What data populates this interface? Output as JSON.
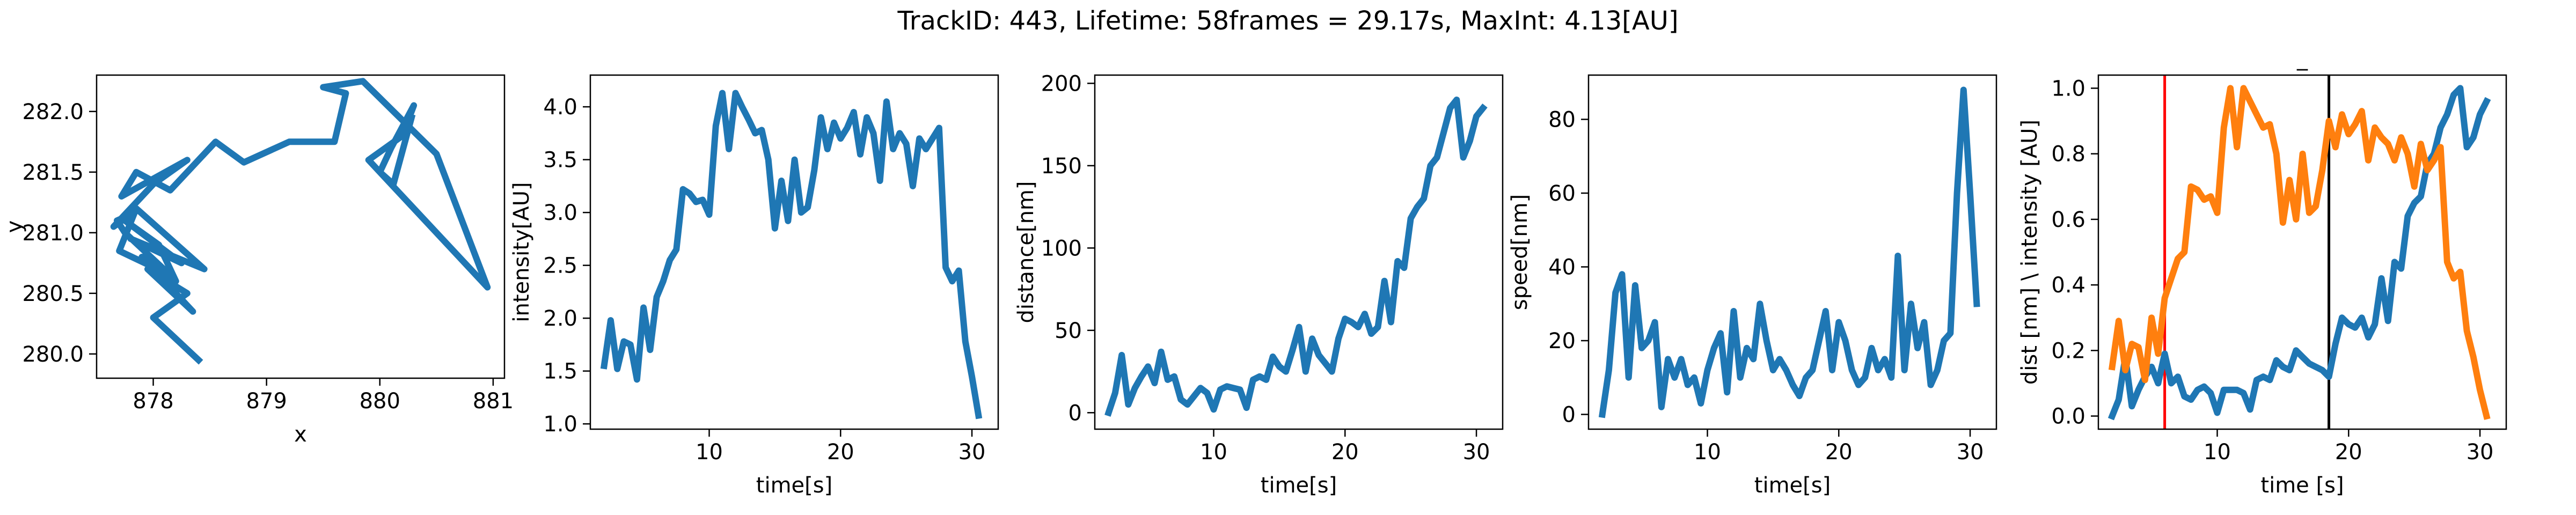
{
  "suptitle": "TrackID: 443, Lifetime: 58frames = 29.17s, MaxInt: 4.13[AU]",
  "colors": {
    "blue": "#1f77b4",
    "orange": "#ff7f0e",
    "red": "#ff0000",
    "black": "#000000"
  },
  "chart_data": [
    {
      "type": "line",
      "xlabel": "x",
      "ylabel": "y",
      "xlim": [
        877.5,
        881.1
      ],
      "ylim": [
        279.8,
        282.3
      ],
      "xticks": [
        878,
        879,
        880,
        881
      ],
      "yticks": [
        280.0,
        280.5,
        281.0,
        281.5,
        282.0
      ],
      "xtick_labels": [
        "878",
        "879",
        "880",
        "881"
      ],
      "ytick_labels": [
        "280.0",
        "280.5",
        "281.0",
        "281.5",
        "282.0"
      ],
      "series": [
        {
          "color": "#1f77b4",
          "x": [
            878.4,
            878.0,
            878.3,
            877.95,
            878.35,
            877.9,
            878.2,
            878.05,
            877.75,
            878.25,
            877.8,
            878.45,
            877.85,
            877.7,
            878.15,
            877.75,
            877.68,
            877.8,
            877.65,
            878.0,
            878.3,
            877.72,
            877.85,
            878.15,
            878.55,
            878.8,
            879.2,
            879.6,
            879.7,
            879.5,
            879.85,
            880.5,
            880.95,
            879.9,
            880.2,
            880.3,
            880.1,
            880.0,
            880.12,
            880.28
          ],
          "y": [
            279.95,
            280.3,
            280.5,
            280.7,
            280.35,
            280.8,
            280.6,
            280.9,
            281.1,
            280.75,
            280.95,
            280.7,
            281.2,
            280.85,
            280.65,
            281.0,
            281.1,
            281.15,
            281.05,
            281.4,
            281.6,
            281.3,
            281.5,
            281.35,
            281.75,
            281.58,
            281.75,
            281.75,
            282.15,
            282.2,
            282.25,
            281.65,
            280.55,
            281.6,
            281.8,
            282.05,
            281.7,
            281.5,
            281.4,
            281.95
          ]
        }
      ]
    },
    {
      "type": "line",
      "xlabel": "time[s]",
      "ylabel": "intensity[AU]",
      "xlim": [
        0.95,
        32.0
      ],
      "ylim": [
        0.95,
        4.3
      ],
      "xticks": [
        10,
        20,
        30
      ],
      "yticks": [
        1.0,
        1.5,
        2.0,
        2.5,
        3.0,
        3.5,
        4.0
      ],
      "xtick_labels": [
        "10",
        "20",
        "30"
      ],
      "ytick_labels": [
        "1.0",
        "1.5",
        "2.0",
        "2.5",
        "3.0",
        "3.5",
        "4.0"
      ],
      "series": [
        {
          "color": "#1f77b4",
          "x": [
            2.0,
            2.5,
            3.0,
            3.5,
            4.0,
            4.5,
            5.0,
            5.5,
            6.0,
            6.5,
            7.0,
            7.5,
            8.0,
            8.5,
            9.0,
            9.5,
            10.0,
            10.5,
            11.0,
            11.5,
            12.0,
            12.5,
            13.0,
            13.5,
            14.0,
            14.5,
            15.0,
            15.5,
            16.0,
            16.5,
            17.0,
            17.5,
            18.0,
            18.5,
            19.0,
            19.5,
            20.0,
            20.5,
            21.0,
            21.5,
            22.0,
            22.5,
            23.0,
            23.5,
            24.0,
            24.5,
            25.0,
            25.5,
            26.0,
            26.5,
            27.0,
            27.5,
            28.0,
            28.5,
            29.0,
            29.5,
            30.0,
            30.5
          ],
          "y": [
            1.55,
            1.98,
            1.52,
            1.78,
            1.75,
            1.42,
            2.1,
            1.7,
            2.2,
            2.35,
            2.55,
            2.65,
            3.22,
            3.18,
            3.1,
            3.12,
            2.98,
            3.82,
            4.13,
            3.6,
            4.13,
            4.0,
            3.88,
            3.75,
            3.78,
            3.5,
            2.85,
            3.3,
            2.92,
            3.5,
            3.0,
            3.05,
            3.4,
            3.9,
            3.6,
            3.85,
            3.7,
            3.8,
            3.95,
            3.55,
            3.9,
            3.75,
            3.3,
            4.05,
            3.6,
            3.75,
            3.65,
            3.25,
            3.7,
            3.6,
            3.7,
            3.8,
            2.48,
            2.35,
            2.45,
            1.78,
            1.45,
            1.08
          ]
        }
      ]
    },
    {
      "type": "line",
      "xlabel": "time[s]",
      "ylabel": "distance[nm]",
      "xlim": [
        0.95,
        32.0
      ],
      "ylim": [
        -10,
        205
      ],
      "xticks": [
        10,
        20,
        30
      ],
      "yticks": [
        0,
        50,
        100,
        150,
        200
      ],
      "xtick_labels": [
        "10",
        "20",
        "30"
      ],
      "ytick_labels": [
        "0",
        "50",
        "100",
        "150",
        "200"
      ],
      "series": [
        {
          "color": "#1f77b4",
          "x": [
            2.0,
            2.5,
            3.0,
            3.5,
            4.0,
            4.5,
            5.0,
            5.5,
            6.0,
            6.5,
            7.0,
            7.5,
            8.0,
            8.5,
            9.0,
            9.5,
            10.0,
            10.5,
            11.0,
            11.5,
            12.0,
            12.5,
            13.0,
            13.5,
            14.0,
            14.5,
            15.0,
            15.5,
            16.0,
            16.5,
            17.0,
            17.5,
            18.0,
            18.5,
            19.0,
            19.5,
            20.0,
            20.5,
            21.0,
            21.5,
            22.0,
            22.5,
            23.0,
            23.5,
            24.0,
            24.5,
            25.0,
            25.5,
            26.0,
            26.5,
            27.0,
            27.5,
            28.0,
            28.5,
            29.0,
            29.5,
            30.0,
            30.5
          ],
          "y": [
            0,
            12,
            35,
            5,
            15,
            22,
            28,
            18,
            37,
            20,
            22,
            8,
            5,
            10,
            15,
            12,
            2,
            14,
            16,
            15,
            14,
            3,
            20,
            22,
            20,
            34,
            28,
            25,
            38,
            52,
            25,
            45,
            35,
            30,
            25,
            45,
            57,
            55,
            52,
            60,
            48,
            52,
            80,
            55,
            92,
            88,
            118,
            125,
            130,
            150,
            155,
            170,
            185,
            190,
            155,
            165,
            180,
            185
          ]
        }
      ]
    },
    {
      "type": "line",
      "xlabel": "time[s]",
      "ylabel": "speed[nm]",
      "xlim": [
        0.95,
        32.0
      ],
      "ylim": [
        -4,
        92
      ],
      "xticks": [
        10,
        20,
        30
      ],
      "yticks": [
        0,
        20,
        40,
        60,
        80
      ],
      "xtick_labels": [
        "10",
        "20",
        "30"
      ],
      "ytick_labels": [
        "0",
        "20",
        "40",
        "60",
        "80"
      ],
      "series": [
        {
          "color": "#1f77b4",
          "x": [
            2.0,
            2.5,
            3.0,
            3.5,
            4.0,
            4.5,
            5.0,
            5.5,
            6.0,
            6.5,
            7.0,
            7.5,
            8.0,
            8.5,
            9.0,
            9.5,
            10.0,
            10.5,
            11.0,
            11.5,
            12.0,
            12.5,
            13.0,
            13.5,
            14.0,
            14.5,
            15.0,
            15.5,
            16.0,
            16.5,
            17.0,
            17.5,
            18.0,
            18.5,
            19.0,
            19.5,
            20.0,
            20.5,
            21.0,
            21.5,
            22.0,
            22.5,
            23.0,
            23.5,
            24.0,
            24.5,
            25.0,
            25.5,
            26.0,
            26.5,
            27.0,
            27.5,
            28.0,
            28.5,
            29.0,
            29.5,
            30.0,
            30.5
          ],
          "y": [
            0,
            12,
            33,
            38,
            10,
            35,
            18,
            20,
            25,
            2,
            15,
            10,
            15,
            8,
            10,
            3,
            12,
            18,
            22,
            6,
            28,
            10,
            18,
            15,
            30,
            20,
            12,
            15,
            12,
            8,
            5,
            10,
            12,
            20,
            28,
            12,
            25,
            20,
            12,
            8,
            10,
            18,
            12,
            15,
            10,
            43,
            12,
            30,
            18,
            25,
            8,
            12,
            20,
            22,
            60,
            88,
            60,
            30
          ]
        }
      ]
    },
    {
      "type": "line",
      "xlabel": "time [s]",
      "ylabel": "dist [nm] \\ intensity [AU]",
      "title": "_",
      "xlim": [
        0.95,
        32.0
      ],
      "ylim": [
        -0.04,
        1.04
      ],
      "xticks": [
        10,
        20,
        30
      ],
      "yticks": [
        0.0,
        0.2,
        0.4,
        0.6,
        0.8,
        1.0
      ],
      "xtick_labels": [
        "10",
        "20",
        "30"
      ],
      "ytick_labels": [
        "0.0",
        "0.2",
        "0.4",
        "0.6",
        "0.8",
        "1.0"
      ],
      "vlines": [
        {
          "x": 6.0,
          "color": "#ff0000"
        },
        {
          "x": 18.5,
          "color": "#000000"
        }
      ],
      "series": [
        {
          "color": "#1f77b4",
          "x": [
            2.0,
            2.5,
            3.0,
            3.5,
            4.0,
            4.5,
            5.0,
            5.5,
            6.0,
            6.5,
            7.0,
            7.5,
            8.0,
            8.5,
            9.0,
            9.5,
            10.0,
            10.5,
            11.0,
            11.5,
            12.0,
            12.5,
            13.0,
            13.5,
            14.0,
            14.5,
            15.0,
            15.5,
            16.0,
            16.5,
            17.0,
            17.5,
            18.0,
            18.5,
            19.0,
            19.5,
            20.0,
            20.5,
            21.0,
            21.5,
            22.0,
            22.5,
            23.0,
            23.5,
            24.0,
            24.5,
            25.0,
            25.5,
            26.0,
            26.5,
            27.0,
            27.5,
            28.0,
            28.5,
            29.0,
            29.5,
            30.0,
            30.5
          ],
          "y": [
            0.0,
            0.05,
            0.18,
            0.03,
            0.08,
            0.12,
            0.15,
            0.1,
            0.19,
            0.1,
            0.12,
            0.06,
            0.05,
            0.08,
            0.09,
            0.07,
            0.01,
            0.08,
            0.08,
            0.08,
            0.07,
            0.02,
            0.11,
            0.12,
            0.11,
            0.17,
            0.15,
            0.14,
            0.2,
            0.18,
            0.16,
            0.15,
            0.14,
            0.12,
            0.22,
            0.3,
            0.28,
            0.27,
            0.3,
            0.24,
            0.28,
            0.42,
            0.29,
            0.47,
            0.45,
            0.61,
            0.65,
            0.67,
            0.77,
            0.8,
            0.88,
            0.92,
            0.98,
            1.0,
            0.82,
            0.85,
            0.92,
            0.96
          ]
        },
        {
          "color": "#ff7f0e",
          "x": [
            2.0,
            2.5,
            3.0,
            3.5,
            4.0,
            4.5,
            5.0,
            5.5,
            6.0,
            6.5,
            7.0,
            7.5,
            8.0,
            8.5,
            9.0,
            9.5,
            10.0,
            10.5,
            11.0,
            11.5,
            12.0,
            12.5,
            13.0,
            13.5,
            14.0,
            14.5,
            15.0,
            15.5,
            16.0,
            16.5,
            17.0,
            17.5,
            18.0,
            18.5,
            19.0,
            19.5,
            20.0,
            20.5,
            21.0,
            21.5,
            22.0,
            22.5,
            23.0,
            23.5,
            24.0,
            24.5,
            25.0,
            25.5,
            26.0,
            26.5,
            27.0,
            27.5,
            28.0,
            28.5,
            29.0,
            29.5,
            30.0,
            30.5
          ],
          "y": [
            0.15,
            0.29,
            0.14,
            0.22,
            0.21,
            0.11,
            0.3,
            0.19,
            0.36,
            0.42,
            0.48,
            0.5,
            0.7,
            0.69,
            0.66,
            0.67,
            0.62,
            0.88,
            1.0,
            0.82,
            1.0,
            0.96,
            0.92,
            0.88,
            0.89,
            0.8,
            0.59,
            0.72,
            0.6,
            0.8,
            0.62,
            0.64,
            0.75,
            0.9,
            0.82,
            0.92,
            0.86,
            0.89,
            0.93,
            0.78,
            0.88,
            0.85,
            0.83,
            0.78,
            0.85,
            0.8,
            0.7,
            0.83,
            0.75,
            0.78,
            0.82,
            0.47,
            0.42,
            0.44,
            0.26,
            0.18,
            0.08,
            0.0
          ]
        }
      ]
    }
  ]
}
